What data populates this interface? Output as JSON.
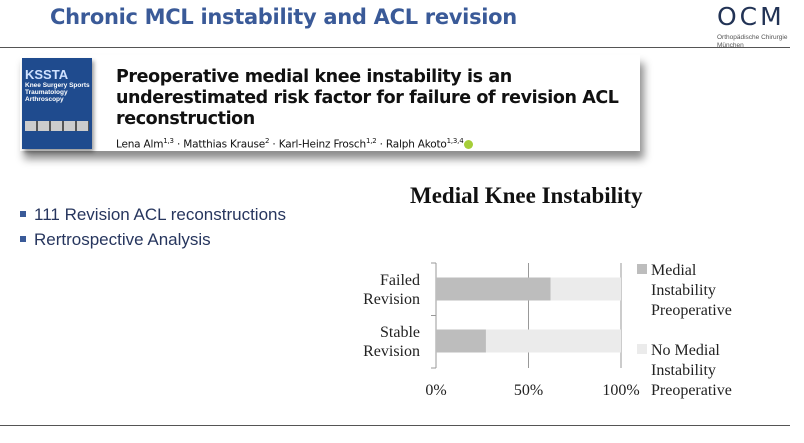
{
  "slide_title": "Chronic MCL instability and ACL revision",
  "logo": {
    "text": "OCM",
    "subtitle_line1": "Orthopädische Chirurgie",
    "subtitle_line2": "München"
  },
  "paper": {
    "journal_abbrev": "KSSTA",
    "journal_name": "Knee Surgery Sports Traumatology Arthroscopy",
    "title": "Preoperative medial knee instability is an underestimated risk factor for failure of revision ACL reconstruction",
    "authors": [
      {
        "name": "Lena Alm",
        "aff": "1,3"
      },
      {
        "name": "Matthias Krause",
        "aff": "2"
      },
      {
        "name": "Karl-Heinz Frosch",
        "aff": "1,2"
      },
      {
        "name": "Ralph Akoto",
        "aff": "1,3,4"
      }
    ]
  },
  "bullets": [
    "111 Revision ACL reconstructions",
    "Rertrospective Analysis"
  ],
  "colors": {
    "medial": "#bdbdbd",
    "no_medial": "#ebebeb",
    "title_blue": "#3a5a98"
  },
  "chart_data": {
    "type": "bar",
    "orientation": "horizontal",
    "stacked": "percent",
    "title": "Medial Knee Instability",
    "categories": [
      [
        "Failed",
        "Revision"
      ],
      [
        "Stable",
        "Revision"
      ]
    ],
    "series": [
      {
        "name": [
          "Medial",
          "Instability",
          "Preoperative"
        ],
        "values": [
          62,
          27
        ]
      },
      {
        "name": [
          "No Medial",
          "Instability",
          "Preoperative"
        ],
        "values": [
          38,
          73
        ]
      }
    ],
    "xlim": [
      0,
      100
    ],
    "xticks": [
      "0%",
      "50%",
      "100%"
    ],
    "grid": true,
    "legend": "right"
  }
}
